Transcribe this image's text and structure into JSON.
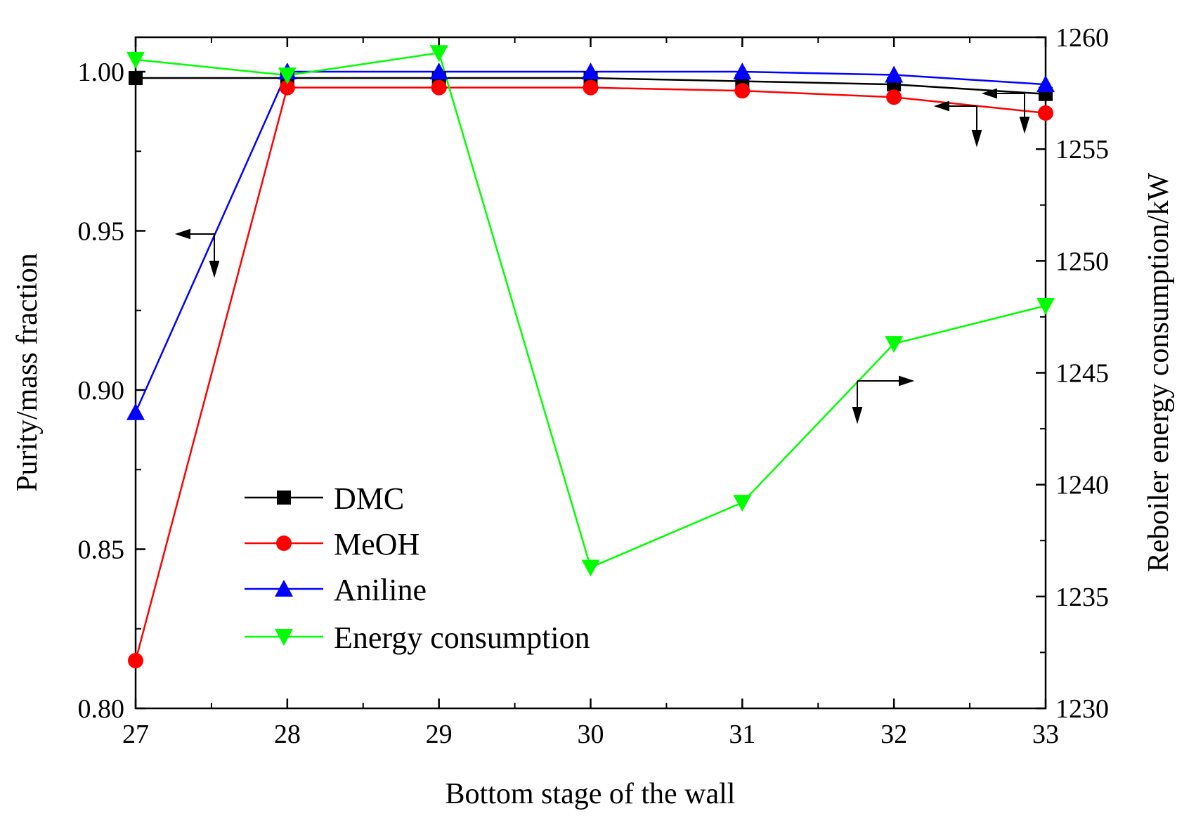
{
  "chart_data": {
    "type": "line",
    "title": "",
    "xlabel": "Bottom stage of the wall",
    "ylabel": "Purity/mass fraction",
    "y2label": "Reboiler energy consumption/kW",
    "x": [
      27,
      28,
      29,
      30,
      31,
      32,
      33
    ],
    "xlim": [
      27,
      33
    ],
    "ylim": [
      0.8,
      1.01
    ],
    "y2lim": [
      1230,
      1260
    ],
    "x_ticks": [
      "27",
      "28",
      "29",
      "30",
      "31",
      "32",
      "33"
    ],
    "y_ticks": [
      "0.80",
      "0.85",
      "0.90",
      "0.95",
      "1.00"
    ],
    "y2_ticks": [
      "1230",
      "1235",
      "1240",
      "1245",
      "1250",
      "1255",
      "1260"
    ],
    "legend_position": "lower-left",
    "series": [
      {
        "name": "DMC",
        "axis": "left",
        "marker": "square",
        "color": "#000000",
        "values": [
          0.998,
          0.998,
          0.998,
          0.998,
          0.997,
          0.996,
          0.993
        ]
      },
      {
        "name": "MeOH",
        "axis": "left",
        "marker": "circle",
        "color": "#ff0000",
        "values": [
          0.815,
          0.995,
          0.995,
          0.995,
          0.994,
          0.992,
          0.987
        ]
      },
      {
        "name": "Aniline",
        "axis": "left",
        "marker": "triangle-up",
        "color": "#0000ff",
        "values": [
          0.893,
          1.0,
          1.0,
          1.0,
          1.0,
          0.999,
          0.996
        ]
      },
      {
        "name": "Energy consumption",
        "axis": "right",
        "marker": "triangle-down",
        "color": "#00ff00",
        "values": [
          1259.0,
          1258.3,
          1259.3,
          1236.3,
          1239.2,
          1246.3,
          1248.0
        ]
      }
    ]
  }
}
